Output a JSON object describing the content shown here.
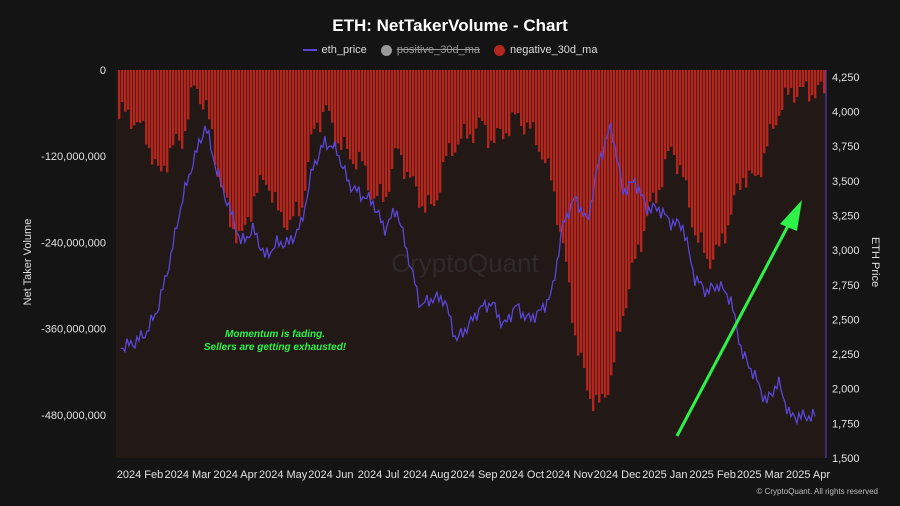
{
  "page": {
    "title": "ETH: NetTakerVolume - Chart",
    "copyright": "© CryptoQuant. All rights reserved",
    "watermark": "CryptoQuant"
  },
  "legend": [
    {
      "name": "eth_price",
      "color": "#5b45d6",
      "kind": "line",
      "disabled": false
    },
    {
      "name": "positive_30d_ma",
      "color": "#9a9a9a",
      "kind": "dot",
      "disabled": true
    },
    {
      "name": "negative_30d_ma",
      "color": "#b3261e",
      "kind": "dot",
      "disabled": false
    }
  ],
  "annotation": {
    "line1": "Momentum is fading.",
    "line2": "Sellers are getting exhausted!"
  },
  "chart_data": {
    "type": "bar",
    "x_ticks": [
      "2024 Feb",
      "2024 Mar",
      "2024 Apr",
      "2024 May",
      "2024 Jun",
      "2024 Jul",
      "2024 Aug",
      "2024 Sep",
      "2024 Oct",
      "2024 Nov",
      "2024 Dec",
      "2025 Jan",
      "2025 Feb",
      "2025 Mar",
      "2025 Apr"
    ],
    "ylabel_left": "Net Taker Volume",
    "ylabel_right": "ETH Price",
    "yleft_ticks": [
      0,
      -120000000,
      -240000000,
      -360000000,
      -480000000
    ],
    "yleft_tick_labels": [
      "0",
      "-120,000,000",
      "-240,000,000",
      "-360,000,000",
      "-480,000,000"
    ],
    "yleft_range": [
      -540000000,
      0
    ],
    "yright_ticks": [
      1500,
      1750,
      2000,
      2250,
      2500,
      2750,
      3000,
      3250,
      3500,
      3750,
      4000,
      4250
    ],
    "yright_tick_labels": [
      "1,500",
      "1,750",
      "2,000",
      "2,250",
      "2,500",
      "2,750",
      "3,000",
      "3,250",
      "3,500",
      "3,750",
      "4,000",
      "4,250"
    ],
    "yright_range": [
      1500,
      4300
    ],
    "series": [
      {
        "name": "negative_30d_ma",
        "color": "#b3261e",
        "values_by_month": [
          [
            -60000000,
            -70000000,
            -95000000,
            -150000000
          ],
          [
            -110000000,
            -95000000,
            -20000000,
            -55000000
          ],
          [
            -145000000,
            -215000000,
            -235000000,
            -175000000
          ],
          [
            -150000000,
            -200000000,
            -215000000,
            -185000000
          ],
          [
            -80000000,
            -55000000,
            -100000000,
            -120000000
          ],
          [
            -130000000,
            -180000000,
            -175000000,
            -110000000
          ],
          [
            -150000000,
            -185000000,
            -195000000,
            -125000000
          ],
          [
            -100000000,
            -90000000,
            -75000000,
            -100000000
          ],
          [
            -85000000,
            -65000000,
            -80000000,
            -110000000
          ],
          [
            -160000000,
            -260000000,
            -380000000,
            -450000000
          ],
          [
            -470000000,
            -420000000,
            -330000000,
            -260000000
          ],
          [
            -200000000,
            -160000000,
            -105000000,
            -155000000
          ],
          [
            -230000000,
            -265000000,
            -250000000,
            -195000000
          ],
          [
            -145000000,
            -155000000,
            -105000000,
            -55000000
          ],
          [
            -30000000
          ]
        ]
      },
      {
        "name": "eth_price",
        "color": "#5b45d6",
        "values_by_month": [
          [
            2300,
            2330,
            2400,
            2580
          ],
          [
            2920,
            3350,
            3650,
            3900
          ],
          [
            3550,
            3300,
            3050,
            3150
          ],
          [
            2950,
            3050,
            3050,
            3180
          ],
          [
            3600,
            3780,
            3720,
            3480
          ],
          [
            3400,
            3350,
            3150,
            3300
          ],
          [
            2950,
            2600,
            2650,
            2650
          ],
          [
            2350,
            2450,
            2580,
            2620
          ],
          [
            2450,
            2600,
            2500,
            2550
          ],
          [
            2680,
            3200,
            3380,
            3200
          ],
          [
            3650,
            3900,
            3420,
            3500
          ],
          [
            3300,
            3300,
            3200,
            3180
          ],
          [
            2800,
            2700,
            2750,
            2650
          ],
          [
            2250,
            2100,
            1900,
            2050
          ],
          [
            1800
          ]
        ]
      }
    ],
    "grid": false,
    "legend_position": "top-center"
  }
}
